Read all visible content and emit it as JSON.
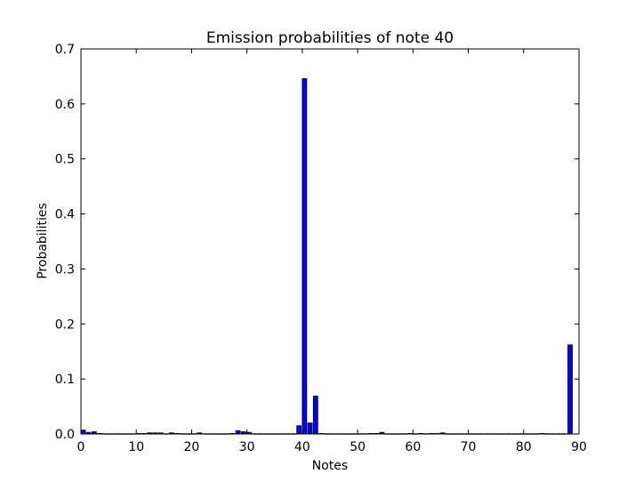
{
  "chart_data": {
    "type": "bar",
    "title": "Emission probabilities of note 40",
    "xlabel": "Notes",
    "ylabel": "Probabilities",
    "xlim": [
      0,
      90
    ],
    "ylim": [
      0,
      0.7
    ],
    "xticks": [
      0,
      10,
      20,
      30,
      40,
      50,
      60,
      70,
      80,
      90
    ],
    "xtick_labels": [
      "0",
      "10",
      "20",
      "30",
      "40",
      "50",
      "60",
      "70",
      "80",
      "90"
    ],
    "yticks": [
      0.0,
      0.1,
      0.2,
      0.3,
      0.4,
      0.5,
      0.6,
      0.7
    ],
    "ytick_labels": [
      "0.0",
      "0.1",
      "0.2",
      "0.3",
      "0.4",
      "0.5",
      "0.6",
      "0.7"
    ],
    "bar_width": 0.8,
    "grid": false,
    "bar_color": "#0000ff",
    "edge_color": "#000000",
    "x": [
      0,
      1,
      2,
      3,
      4,
      5,
      6,
      7,
      8,
      9,
      10,
      11,
      12,
      13,
      14,
      15,
      16,
      17,
      18,
      19,
      20,
      21,
      22,
      23,
      24,
      25,
      26,
      27,
      28,
      29,
      30,
      31,
      32,
      33,
      34,
      35,
      36,
      37,
      38,
      39,
      40,
      41,
      42,
      43,
      44,
      45,
      46,
      47,
      48,
      49,
      50,
      51,
      52,
      53,
      54,
      55,
      56,
      57,
      58,
      59,
      60,
      61,
      62,
      63,
      64,
      65,
      66,
      67,
      68,
      69,
      70,
      71,
      72,
      73,
      74,
      75,
      76,
      77,
      78,
      79,
      80,
      81,
      82,
      83,
      84,
      85,
      86,
      87,
      88
    ],
    "values": [
      0.007,
      0.003,
      0.004,
      0.001,
      0.0005,
      0.0005,
      0.0005,
      0.0005,
      0.0005,
      0.0005,
      0.001,
      0.001,
      0.002,
      0.002,
      0.002,
      0.0005,
      0.002,
      0.001,
      0.0005,
      0.0005,
      0.0005,
      0.002,
      0.0005,
      0.0005,
      0.0005,
      0.0005,
      0.0005,
      0.001,
      0.006,
      0.004,
      0.003,
      0.0005,
      0.0005,
      0.0005,
      0.0005,
      0.0005,
      0.0005,
      0.0005,
      0.0005,
      0.015,
      0.646,
      0.02,
      0.069,
      0.001,
      0.0005,
      0.0005,
      0.0005,
      0.0005,
      0.0005,
      0.0005,
      0.0005,
      0.0005,
      0.001,
      0.001,
      0.003,
      0.0005,
      0.0005,
      0.0005,
      0.0005,
      0.001,
      0.0005,
      0.001,
      0.0005,
      0.001,
      0.001,
      0.002,
      0.0005,
      0.0005,
      0.0005,
      0.0005,
      0.0005,
      0.0005,
      0.0005,
      0.0005,
      0.0005,
      0.0005,
      0.0005,
      0.0005,
      0.0005,
      0.0005,
      0.0005,
      0.0005,
      0.0005,
      0.001,
      0.0005,
      0.0005,
      0.0005,
      0.0005,
      0.162
    ]
  }
}
